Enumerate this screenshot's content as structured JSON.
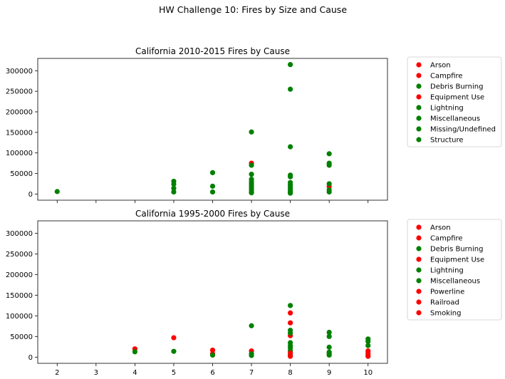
{
  "figure": {
    "suptitle": "HW Challenge 10: Fires by Size and Cause"
  },
  "colors": {
    "red": "#ff0000",
    "green": "#008000"
  },
  "chart_data": [
    {
      "type": "scatter",
      "title": "California 2010-2015 Fires by Cause",
      "xlabel": "",
      "ylabel": "",
      "xlim": [
        1.5,
        10.5
      ],
      "ylim": [
        -15000,
        330000
      ],
      "xticks": [
        2,
        3,
        4,
        5,
        6,
        7,
        8,
        9,
        10
      ],
      "xtick_labels_visible": false,
      "yticks": [
        0,
        50000,
        100000,
        150000,
        200000,
        250000,
        300000
      ],
      "legend_placement": "outside-right-top",
      "series": [
        {
          "name": "Arson",
          "color": "#ff0000",
          "x": [],
          "y": []
        },
        {
          "name": "Campfire",
          "color": "#ff0000",
          "x": [],
          "y": []
        },
        {
          "name": "Debris Burning",
          "color": "#008000",
          "x": [
            7,
            8
          ],
          "y": [
            3000,
            5000
          ]
        },
        {
          "name": "Equipment Use",
          "color": "#ff0000",
          "x": [
            7,
            9
          ],
          "y": [
            75000,
            18000
          ]
        },
        {
          "name": "Lightning",
          "color": "#008000",
          "x": [
            2,
            5,
            5,
            5,
            5,
            6,
            6,
            6,
            7,
            7,
            7,
            7,
            7,
            7,
            7,
            7,
            7,
            7,
            8,
            8,
            8,
            8,
            8,
            8,
            8,
            8,
            8,
            8,
            9,
            9,
            9,
            9,
            9
          ],
          "y": [
            6000,
            31000,
            24000,
            14000,
            5000,
            52000,
            19000,
            5000,
            151000,
            70000,
            48000,
            36000,
            30000,
            25000,
            20000,
            15000,
            10000,
            5000,
            315000,
            255000,
            115000,
            46000,
            42000,
            28000,
            22000,
            17000,
            12000,
            7000,
            98000,
            75000,
            70000,
            25000,
            10000
          ]
        },
        {
          "name": "Miscellaneous",
          "color": "#008000",
          "x": [
            9
          ],
          "y": [
            5000
          ]
        },
        {
          "name": "Missing/Undefined",
          "color": "#008000",
          "x": [
            8
          ],
          "y": [
            2000
          ]
        },
        {
          "name": "Structure",
          "color": "#008000",
          "x": [],
          "y": []
        }
      ]
    },
    {
      "type": "scatter",
      "title": "California 1995-2000 Fires by Cause",
      "xlabel": "",
      "ylabel": "",
      "xlim": [
        1.5,
        10.5
      ],
      "ylim": [
        -15000,
        330000
      ],
      "xticks": [
        2,
        3,
        4,
        5,
        6,
        7,
        8,
        9,
        10
      ],
      "xtick_labels_visible": true,
      "yticks": [
        0,
        50000,
        100000,
        150000,
        200000,
        250000,
        300000
      ],
      "legend_placement": "outside-right-top",
      "series": [
        {
          "name": "Arson",
          "color": "#ff0000",
          "x": [
            4,
            5,
            6,
            8,
            10
          ],
          "y": [
            20000,
            47000,
            17000,
            107000,
            10000
          ]
        },
        {
          "name": "Campfire",
          "color": "#ff0000",
          "x": [
            6,
            7,
            8
          ],
          "y": [
            8000,
            15000,
            83000
          ]
        },
        {
          "name": "Debris Burning",
          "color": "#008000",
          "x": [
            8,
            9
          ],
          "y": [
            5000,
            8000
          ]
        },
        {
          "name": "Equipment Use",
          "color": "#ff0000",
          "x": [
            8,
            10
          ],
          "y": [
            52000,
            5000
          ]
        },
        {
          "name": "Lightning",
          "color": "#008000",
          "x": [
            4,
            5,
            6,
            7,
            7,
            8,
            8,
            8,
            8,
            8,
            8,
            8,
            9,
            9,
            9,
            9,
            10,
            10,
            10
          ],
          "y": [
            13000,
            14000,
            5000,
            76000,
            8000,
            125000,
            65000,
            58000,
            35000,
            28000,
            22000,
            15000,
            60000,
            50000,
            24000,
            12000,
            44000,
            38000,
            28000
          ]
        },
        {
          "name": "Miscellaneous",
          "color": "#008000",
          "x": [
            7,
            9
          ],
          "y": [
            4000,
            5000
          ]
        },
        {
          "name": "Powerline",
          "color": "#ff0000",
          "x": [
            8
          ],
          "y": [
            10000
          ]
        },
        {
          "name": "Railroad",
          "color": "#ff0000",
          "x": [
            10
          ],
          "y": [
            15000
          ]
        },
        {
          "name": "Smoking",
          "color": "#ff0000",
          "x": [
            8,
            10
          ],
          "y": [
            2000,
            2000
          ]
        }
      ]
    }
  ]
}
